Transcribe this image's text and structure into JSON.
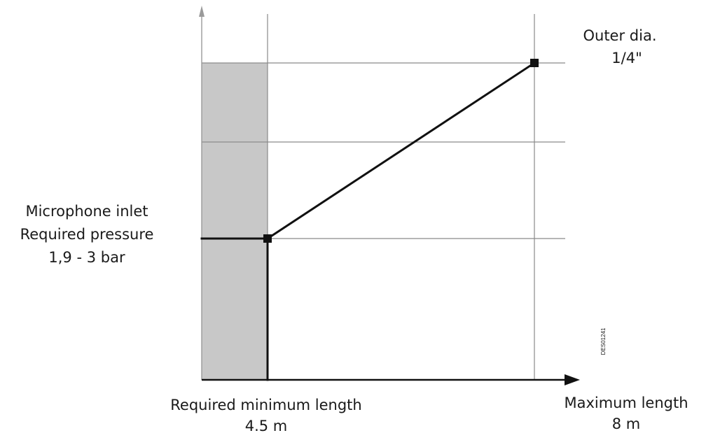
{
  "chart_data": {
    "type": "line",
    "title": "",
    "diagram_code": "DES01241",
    "x_axis": {
      "marks": [
        {
          "label_lines": [
            "Required minimum length",
            "4.5 m"
          ],
          "value": 4.5
        },
        {
          "label_lines": [
            "Maximum length",
            "8 m"
          ],
          "value": 8
        }
      ]
    },
    "y_axis": {
      "label_lines": [
        "Microphone inlet",
        "Required pressure",
        "1,9 - 3 bar"
      ]
    },
    "series": [
      {
        "points": [
          {
            "x": 4.5,
            "y": 1
          },
          {
            "x": 8,
            "y": 3.2
          }
        ],
        "end_label_lines": [
          "Outer dia.",
          "1/4\""
        ]
      }
    ],
    "shaded_region": {
      "x_from": 3.6,
      "x_to": 4.5
    },
    "grid": true,
    "colors": {
      "line": "#111111",
      "grid": "#8a8a8a",
      "shade": "#c8c8c8",
      "axis": "#111111"
    }
  }
}
